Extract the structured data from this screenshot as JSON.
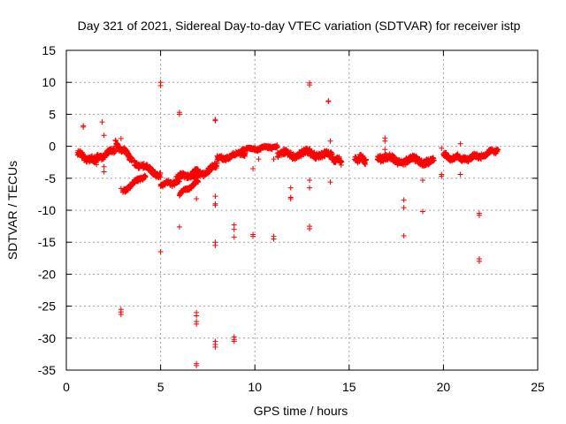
{
  "chart_data": {
    "type": "scatter",
    "title": "Day 321 of 2021, Sidereal Day-to-day VTEC variation (SDTVAR) for receiver istp",
    "xlabel": "GPS time / hours",
    "ylabel": "SDTVAR / TECUs",
    "xlim": [
      0,
      25
    ],
    "ylim": [
      -35,
      15
    ],
    "xticks": [
      0,
      5,
      10,
      15,
      20,
      25
    ],
    "yticks": [
      15,
      10,
      5,
      0,
      -5,
      -10,
      -15,
      -20,
      -25,
      -30,
      -35
    ],
    "grid": true,
    "marker": "+",
    "color": "#ff0000",
    "bands": [
      {
        "x0": 0.6,
        "x1": 1.6,
        "y0": -1.2,
        "y1": -2.5,
        "jitter": 0.9
      },
      {
        "x0": 1.6,
        "x1": 2.6,
        "y0": -2.0,
        "y1": -0.5,
        "jitter": 0.8
      },
      {
        "x0": 2.6,
        "x1": 3.5,
        "y0": 0.5,
        "y1": -2.0,
        "jitter": 0.8
      },
      {
        "x0": 3.0,
        "x1": 4.2,
        "y0": -7.0,
        "y1": -4.5,
        "jitter": 0.6
      },
      {
        "x0": 3.6,
        "x1": 5.0,
        "y0": -2.5,
        "y1": -4.5,
        "jitter": 0.8
      },
      {
        "x0": 5.0,
        "x1": 6.0,
        "y0": -6.0,
        "y1": -5.5,
        "jitter": 0.7
      },
      {
        "x0": 5.8,
        "x1": 7.0,
        "y0": -5.0,
        "y1": -4.0,
        "jitter": 0.8
      },
      {
        "x0": 6.0,
        "x1": 7.0,
        "y0": -7.5,
        "y1": -5.5,
        "jitter": 0.5
      },
      {
        "x0": 6.8,
        "x1": 8.0,
        "y0": -5.0,
        "y1": -3.0,
        "jitter": 0.8
      },
      {
        "x0": 8.0,
        "x1": 9.5,
        "y0": -2.0,
        "y1": -1.0,
        "jitter": 0.7
      },
      {
        "x0": 9.3,
        "x1": 10.0,
        "y0": -0.5,
        "y1": -0.3,
        "jitter": 0.4
      },
      {
        "x0": 10.0,
        "x1": 11.2,
        "y0": -0.4,
        "y1": 0.0,
        "jitter": 0.5
      },
      {
        "x0": 11.2,
        "x1": 12.5,
        "y0": -1.0,
        "y1": -1.5,
        "jitter": 0.9
      },
      {
        "x0": 12.5,
        "x1": 14.0,
        "y0": -1.0,
        "y1": -1.5,
        "jitter": 1.0
      },
      {
        "x0": 14.0,
        "x1": 14.6,
        "y0": -1.5,
        "y1": -2.5,
        "jitter": 0.9
      },
      {
        "x0": 15.3,
        "x1": 15.9,
        "y0": -1.8,
        "y1": -2.2,
        "jitter": 1.0
      },
      {
        "x0": 16.5,
        "x1": 18.0,
        "y0": -1.5,
        "y1": -2.5,
        "jitter": 1.0
      },
      {
        "x0": 18.0,
        "x1": 19.5,
        "y0": -2.0,
        "y1": -2.5,
        "jitter": 1.0
      },
      {
        "x0": 20.0,
        "x1": 21.0,
        "y0": -1.5,
        "y1": -2.0,
        "jitter": 0.8
      },
      {
        "x0": 21.0,
        "x1": 22.0,
        "y0": -2.0,
        "y1": -1.5,
        "jitter": 0.7
      },
      {
        "x0": 22.0,
        "x1": 22.9,
        "y0": -1.5,
        "y1": -0.5,
        "jitter": 0.6
      }
    ],
    "outliers": [
      {
        "x": 0.9,
        "y": 3.2
      },
      {
        "x": 0.9,
        "y": 3.0
      },
      {
        "x": 1.9,
        "y": 3.8
      },
      {
        "x": 2.0,
        "y": 1.7
      },
      {
        "x": 2.0,
        "y": -3.2
      },
      {
        "x": 2.0,
        "y": -4.0
      },
      {
        "x": 2.9,
        "y": 1.2
      },
      {
        "x": 2.9,
        "y": -6.6
      },
      {
        "x": 2.9,
        "y": -25.5
      },
      {
        "x": 2.9,
        "y": -25.9
      },
      {
        "x": 2.9,
        "y": -26.3
      },
      {
        "x": 5.0,
        "y": 10.0
      },
      {
        "x": 5.0,
        "y": 9.5
      },
      {
        "x": 5.0,
        "y": -16.5
      },
      {
        "x": 6.0,
        "y": 5.3
      },
      {
        "x": 6.0,
        "y": 5.0
      },
      {
        "x": 6.0,
        "y": -12.6
      },
      {
        "x": 6.9,
        "y": -8.2
      },
      {
        "x": 6.9,
        "y": -26.0
      },
      {
        "x": 6.9,
        "y": -26.5
      },
      {
        "x": 6.9,
        "y": -27.4
      },
      {
        "x": 6.9,
        "y": -27.8
      },
      {
        "x": 6.9,
        "y": -34.0
      },
      {
        "x": 6.9,
        "y": -34.3
      },
      {
        "x": 7.9,
        "y": 4.2
      },
      {
        "x": 7.9,
        "y": 4.0
      },
      {
        "x": 7.9,
        "y": -7.8
      },
      {
        "x": 7.9,
        "y": -9.2
      },
      {
        "x": 7.9,
        "y": -9.0
      },
      {
        "x": 7.9,
        "y": -15.0
      },
      {
        "x": 7.9,
        "y": -15.5
      },
      {
        "x": 7.9,
        "y": -30.5
      },
      {
        "x": 7.9,
        "y": -31.0
      },
      {
        "x": 7.9,
        "y": -31.4
      },
      {
        "x": 8.9,
        "y": -12.3
      },
      {
        "x": 8.9,
        "y": -13.0
      },
      {
        "x": 8.9,
        "y": -14.2
      },
      {
        "x": 8.9,
        "y": -29.8
      },
      {
        "x": 8.9,
        "y": -30.2
      },
      {
        "x": 8.9,
        "y": -30.5
      },
      {
        "x": 9.9,
        "y": -3.5
      },
      {
        "x": 9.9,
        "y": -13.8
      },
      {
        "x": 9.9,
        "y": -14.1
      },
      {
        "x": 10.2,
        "y": -2.0
      },
      {
        "x": 11.0,
        "y": -14.1
      },
      {
        "x": 11.0,
        "y": -14.5
      },
      {
        "x": 11.0,
        "y": -2.0
      },
      {
        "x": 11.9,
        "y": -6.5
      },
      {
        "x": 11.9,
        "y": -8.0
      },
      {
        "x": 11.9,
        "y": -8.2
      },
      {
        "x": 12.9,
        "y": 9.9
      },
      {
        "x": 12.9,
        "y": 9.6
      },
      {
        "x": 12.9,
        "y": -5.3
      },
      {
        "x": 12.9,
        "y": -6.5
      },
      {
        "x": 12.9,
        "y": -12.5
      },
      {
        "x": 12.9,
        "y": -12.9
      },
      {
        "x": 13.9,
        "y": 7.1
      },
      {
        "x": 13.9,
        "y": 7.0
      },
      {
        "x": 14.0,
        "y": 0.8
      },
      {
        "x": 14.0,
        "y": -5.6
      },
      {
        "x": 16.9,
        "y": 1.3
      },
      {
        "x": 16.9,
        "y": 0.8
      },
      {
        "x": 16.9,
        "y": -0.5
      },
      {
        "x": 17.9,
        "y": -8.4
      },
      {
        "x": 17.9,
        "y": -9.6
      },
      {
        "x": 17.9,
        "y": -14.0
      },
      {
        "x": 18.9,
        "y": -5.3
      },
      {
        "x": 18.9,
        "y": -10.2
      },
      {
        "x": 19.9,
        "y": -0.3
      },
      {
        "x": 19.9,
        "y": -4.4
      },
      {
        "x": 19.9,
        "y": -4.7
      },
      {
        "x": 20.9,
        "y": 0.4
      },
      {
        "x": 20.9,
        "y": -4.4
      },
      {
        "x": 21.9,
        "y": -10.5
      },
      {
        "x": 21.9,
        "y": -10.8
      },
      {
        "x": 21.9,
        "y": -17.6
      },
      {
        "x": 21.9,
        "y": -18.0
      }
    ]
  }
}
